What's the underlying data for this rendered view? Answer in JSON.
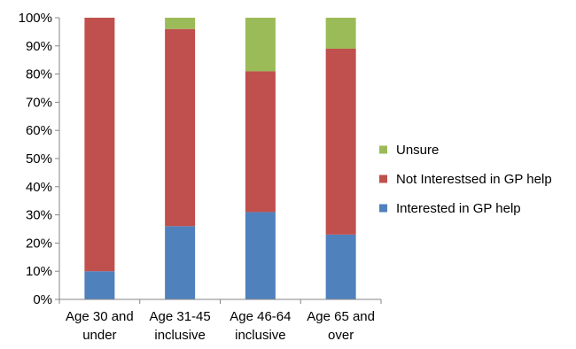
{
  "chart_data": {
    "type": "bar",
    "stacked": true,
    "title": "",
    "xlabel": "",
    "ylabel": "",
    "ylim": [
      0,
      100
    ],
    "y_ticks": [
      "0%",
      "10%",
      "20%",
      "30%",
      "40%",
      "50%",
      "60%",
      "70%",
      "80%",
      "90%",
      "100%"
    ],
    "grid": false,
    "legend_position": "right",
    "categories": [
      [
        "Age 30 and",
        "under"
      ],
      [
        "Age 31-45",
        "inclusive"
      ],
      [
        "Age 46-64",
        "inclusive"
      ],
      [
        "Age 65 and",
        "over"
      ]
    ],
    "series": [
      {
        "name": "Interested in GP help",
        "color": "#4f81bd",
        "values": [
          10,
          26,
          31,
          23
        ]
      },
      {
        "name": "Not Interestsed in GP help",
        "color": "#c0504d",
        "values": [
          90,
          70,
          50,
          66
        ]
      },
      {
        "name": "Unsure",
        "color": "#9bbb59",
        "values": [
          0,
          4,
          19,
          11
        ]
      }
    ]
  }
}
